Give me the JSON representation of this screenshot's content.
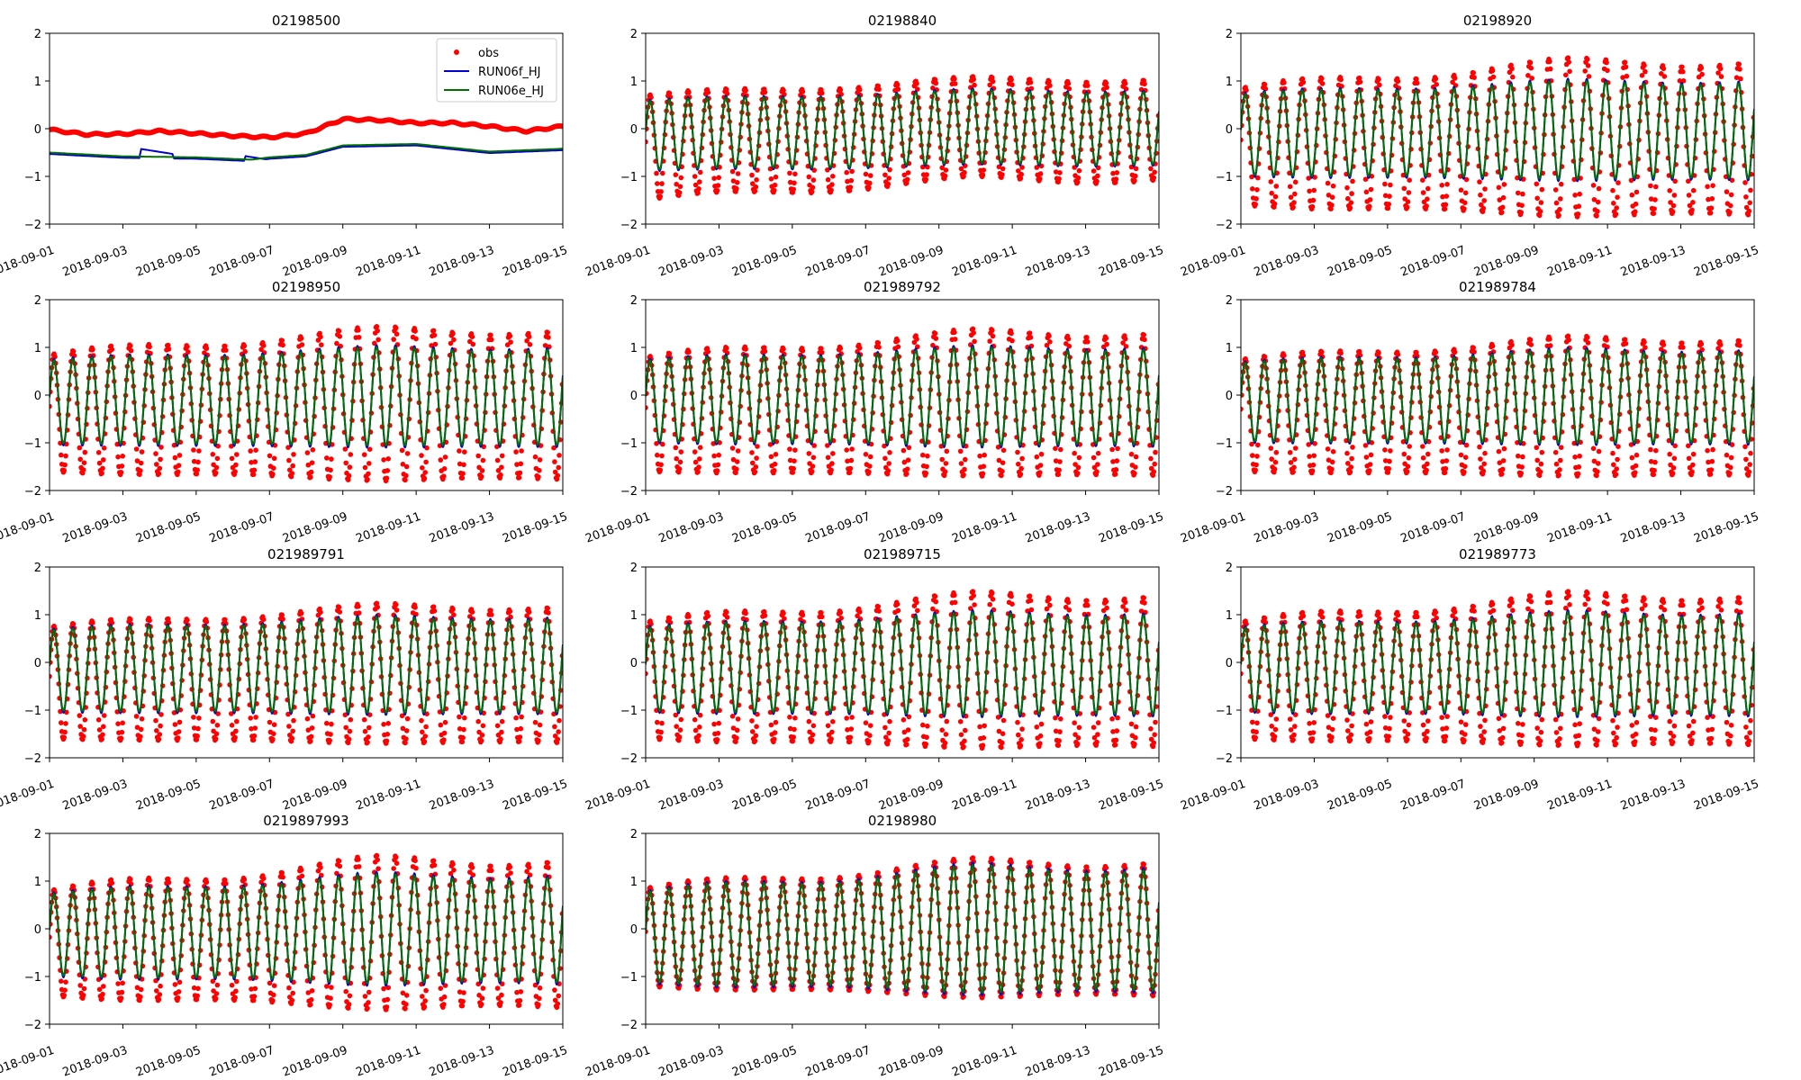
{
  "figure": {
    "colors": {
      "obs": "#ff0000",
      "RUN06f_HJ": "#0000cc",
      "RUN06e_HJ": "#007000"
    },
    "x_tick_labels": [
      "2018-09-01",
      "2018-09-03",
      "2018-09-05",
      "2018-09-07",
      "2018-09-09",
      "2018-09-11",
      "2018-09-13",
      "2018-09-15"
    ],
    "y_tick_labels": [
      "−2",
      "−1",
      "0",
      "1",
      "2"
    ],
    "legend": [
      "obs",
      "RUN06f_HJ",
      "RUN06e_HJ"
    ]
  },
  "chart_data": [
    {
      "type": "line",
      "title": "02198500",
      "xlim": [
        "2018-09-01",
        "2018-09-15"
      ],
      "ylim": [
        -2,
        2
      ],
      "grid": false,
      "legend_position": "upper-right",
      "pattern": "flat",
      "series": [
        {
          "name": "obs",
          "style": "points"
        },
        {
          "name": "RUN06f_HJ",
          "style": "line"
        },
        {
          "name": "RUN06e_HJ",
          "style": "line"
        }
      ],
      "obs_level_keypoints": {
        "day": [
          0,
          1,
          2,
          3,
          4,
          5,
          6,
          7,
          8,
          9,
          10,
          11,
          12,
          13,
          14
        ],
        "value": [
          -0.02,
          -0.12,
          -0.11,
          -0.05,
          -0.1,
          -0.15,
          -0.18,
          -0.1,
          0.2,
          0.18,
          0.12,
          0.12,
          0.05,
          -0.05,
          0.05
        ]
      },
      "model_level_keypoints": {
        "day": [
          0,
          2,
          4,
          5.5,
          6,
          7,
          8,
          10,
          12,
          14
        ],
        "value": [
          -0.5,
          -0.58,
          -0.6,
          -0.65,
          -0.6,
          -0.55,
          -0.35,
          -0.32,
          -0.48,
          -0.42
        ]
      },
      "RUN06f_HJ_spikes": [
        {
          "day": 2.45,
          "value": -0.42
        },
        {
          "day": 5.3,
          "value": -0.57
        }
      ]
    },
    {
      "type": "line",
      "title": "02198840",
      "xlim": [
        "2018-09-01",
        "2018-09-15"
      ],
      "ylim": [
        -2,
        2
      ],
      "grid": false,
      "pattern": "tidal",
      "series": [
        {
          "name": "obs",
          "style": "points"
        },
        {
          "name": "RUN06f_HJ",
          "style": "line"
        },
        {
          "name": "RUN06e_HJ",
          "style": "line"
        }
      ],
      "obs_range": {
        "max": [
          0.7,
          1.1
        ],
        "min": [
          -1.5,
          -1.0
        ]
      },
      "model_range": {
        "max": [
          0.6,
          0.85
        ],
        "min": [
          -0.9,
          -0.75
        ]
      }
    },
    {
      "type": "line",
      "title": "02198920",
      "xlim": [
        "2018-09-01",
        "2018-09-15"
      ],
      "ylim": [
        -2,
        2
      ],
      "grid": false,
      "pattern": "tidal",
      "series": [
        {
          "name": "obs",
          "style": "points"
        },
        {
          "name": "RUN06f_HJ",
          "style": "line"
        },
        {
          "name": "RUN06e_HJ",
          "style": "line"
        }
      ],
      "obs_range": {
        "max": [
          0.85,
          1.5
        ],
        "min": [
          -1.6,
          -1.85
        ]
      },
      "model_range": {
        "max": [
          0.75,
          1.05
        ],
        "min": [
          -1.0,
          -1.1
        ]
      }
    },
    {
      "type": "line",
      "title": "02198950",
      "xlim": [
        "2018-09-01",
        "2018-09-15"
      ],
      "ylim": [
        -2,
        2
      ],
      "grid": false,
      "pattern": "tidal",
      "series": [
        {
          "name": "obs",
          "style": "points"
        },
        {
          "name": "RUN06f_HJ",
          "style": "line"
        },
        {
          "name": "RUN06e_HJ",
          "style": "line"
        }
      ],
      "obs_range": {
        "max": [
          0.85,
          1.45
        ],
        "min": [
          -1.6,
          -1.8
        ]
      },
      "model_range": {
        "max": [
          0.75,
          1.05
        ],
        "min": [
          -1.05,
          -1.1
        ]
      }
    },
    {
      "type": "line",
      "title": "021989792",
      "xlim": [
        "2018-09-01",
        "2018-09-15"
      ],
      "ylim": [
        -2,
        2
      ],
      "grid": false,
      "pattern": "tidal",
      "series": [
        {
          "name": "obs",
          "style": "points"
        },
        {
          "name": "RUN06f_HJ",
          "style": "line"
        },
        {
          "name": "RUN06e_HJ",
          "style": "line"
        }
      ],
      "obs_range": {
        "max": [
          0.8,
          1.4
        ],
        "min": [
          -1.6,
          -1.7
        ]
      },
      "model_range": {
        "max": [
          0.75,
          1.05
        ],
        "min": [
          -1.0,
          -1.1
        ]
      }
    },
    {
      "type": "line",
      "title": "021989784",
      "xlim": [
        "2018-09-01",
        "2018-09-15"
      ],
      "ylim": [
        -2,
        2
      ],
      "grid": false,
      "pattern": "tidal",
      "series": [
        {
          "name": "obs",
          "style": "points"
        },
        {
          "name": "RUN06f_HJ",
          "style": "line"
        },
        {
          "name": "RUN06e_HJ",
          "style": "line"
        }
      ],
      "obs_range": {
        "max": [
          0.75,
          1.25
        ],
        "min": [
          -1.6,
          -1.7
        ]
      },
      "model_range": {
        "max": [
          0.7,
          1.0
        ],
        "min": [
          -1.0,
          -1.05
        ]
      }
    },
    {
      "type": "line",
      "title": "021989791",
      "xlim": [
        "2018-09-01",
        "2018-09-15"
      ],
      "ylim": [
        -2,
        2
      ],
      "grid": false,
      "pattern": "tidal",
      "series": [
        {
          "name": "obs",
          "style": "points"
        },
        {
          "name": "RUN06f_HJ",
          "style": "line"
        },
        {
          "name": "RUN06e_HJ",
          "style": "line"
        }
      ],
      "obs_range": {
        "max": [
          0.75,
          1.25
        ],
        "min": [
          -1.6,
          -1.7
        ]
      },
      "model_range": {
        "max": [
          0.7,
          1.0
        ],
        "min": [
          -1.05,
          -1.1
        ]
      }
    },
    {
      "type": "line",
      "title": "021989715",
      "xlim": [
        "2018-09-01",
        "2018-09-15"
      ],
      "ylim": [
        -2,
        2
      ],
      "grid": false,
      "pattern": "tidal",
      "series": [
        {
          "name": "obs",
          "style": "points"
        },
        {
          "name": "RUN06f_HJ",
          "style": "line"
        },
        {
          "name": "RUN06e_HJ",
          "style": "line"
        }
      ],
      "obs_range": {
        "max": [
          0.85,
          1.5
        ],
        "min": [
          -1.6,
          -1.8
        ]
      },
      "model_range": {
        "max": [
          0.75,
          1.1
        ],
        "min": [
          -1.05,
          -1.15
        ]
      }
    },
    {
      "type": "line",
      "title": "021989773",
      "xlim": [
        "2018-09-01",
        "2018-09-15"
      ],
      "ylim": [
        -2,
        2
      ],
      "grid": false,
      "pattern": "tidal",
      "series": [
        {
          "name": "obs",
          "style": "points"
        },
        {
          "name": "RUN06f_HJ",
          "style": "line"
        },
        {
          "name": "RUN06e_HJ",
          "style": "line"
        }
      ],
      "obs_range": {
        "max": [
          0.85,
          1.5
        ],
        "min": [
          -1.6,
          -1.75
        ]
      },
      "model_range": {
        "max": [
          0.75,
          1.1
        ],
        "min": [
          -1.05,
          -1.15
        ]
      }
    },
    {
      "type": "line",
      "title": "0219897993",
      "xlim": [
        "2018-09-01",
        "2018-09-15"
      ],
      "ylim": [
        -2,
        2
      ],
      "grid": false,
      "pattern": "tidal",
      "series": [
        {
          "name": "obs",
          "style": "points"
        },
        {
          "name": "RUN06f_HJ",
          "style": "line"
        },
        {
          "name": "RUN06e_HJ",
          "style": "line"
        }
      ],
      "obs_range": {
        "max": [
          0.8,
          1.55
        ],
        "min": [
          -1.4,
          -1.7
        ]
      },
      "model_range": {
        "max": [
          0.75,
          1.2
        ],
        "min": [
          -1.0,
          -1.2
        ]
      }
    },
    {
      "type": "line",
      "title": "02198980",
      "xlim": [
        "2018-09-01",
        "2018-09-15"
      ],
      "ylim": [
        -2,
        2
      ],
      "grid": false,
      "pattern": "tidal",
      "series": [
        {
          "name": "obs",
          "style": "points"
        },
        {
          "name": "RUN06f_HJ",
          "style": "line"
        },
        {
          "name": "RUN06e_HJ",
          "style": "line"
        }
      ],
      "obs_range": {
        "max": [
          0.85,
          1.5
        ],
        "min": [
          -1.2,
          -1.45
        ]
      },
      "model_range": {
        "max": [
          0.8,
          1.4
        ],
        "min": [
          -1.15,
          -1.4
        ]
      }
    }
  ]
}
